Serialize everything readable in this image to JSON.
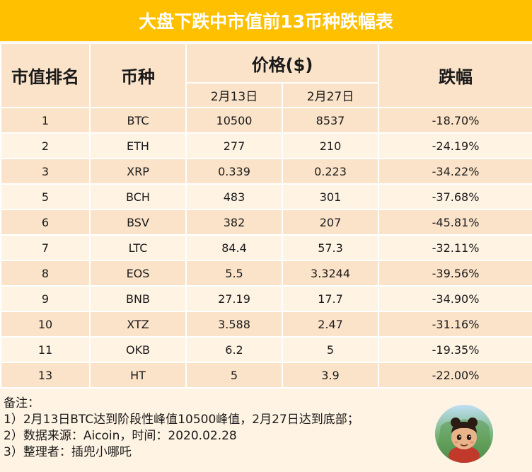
{
  "title": "大盘下跌中市值前13币种跌幅表",
  "headers": {
    "rank": "市值排名",
    "coin": "币种",
    "price": "价格($)",
    "date1": "2月13日",
    "date2": "2月27日",
    "change": "跌幅"
  },
  "rows": [
    {
      "rank": "1",
      "coin": "BTC",
      "p1": "10500",
      "p2": "8537",
      "change": "-18.70%"
    },
    {
      "rank": "2",
      "coin": "ETH",
      "p1": "277",
      "p2": "210",
      "change": "-24.19%"
    },
    {
      "rank": "3",
      "coin": "XRP",
      "p1": "0.339",
      "p2": "0.223",
      "change": "-34.22%"
    },
    {
      "rank": "5",
      "coin": "BCH",
      "p1": "483",
      "p2": "301",
      "change": "-37.68%"
    },
    {
      "rank": "6",
      "coin": "BSV",
      "p1": "382",
      "p2": "207",
      "change": "-45.81%"
    },
    {
      "rank": "7",
      "coin": "LTC",
      "p1": "84.4",
      "p2": "57.3",
      "change": "-32.11%"
    },
    {
      "rank": "8",
      "coin": "EOS",
      "p1": "5.5",
      "p2": "3.3244",
      "change": "-39.56%"
    },
    {
      "rank": "9",
      "coin": "BNB",
      "p1": "27.19",
      "p2": "17.7",
      "change": "-34.90%"
    },
    {
      "rank": "10",
      "coin": "XTZ",
      "p1": "3.588",
      "p2": "2.47",
      "change": "-31.16%"
    },
    {
      "rank": "11",
      "coin": "OKB",
      "p1": "6.2",
      "p2": "5",
      "change": "-19.35%"
    },
    {
      "rank": "13",
      "coin": "HT",
      "p1": "5",
      "p2": "3.9",
      "change": "-22.00%"
    }
  ],
  "notes": {
    "heading": "备注：",
    "lines": [
      "1）2月13日BTC达到阶段性峰值10500峰值，2月27日达到底部；",
      "2）数据来源：Aicoin，时间：2020.02.28",
      "3）整理者：插兜小哪吒"
    ]
  },
  "avatar": "cartoon-avatar-icon",
  "colors": {
    "title_bg": "#ffc000",
    "row_dark": "#fbe3c9",
    "row_light": "#fff3e3"
  }
}
